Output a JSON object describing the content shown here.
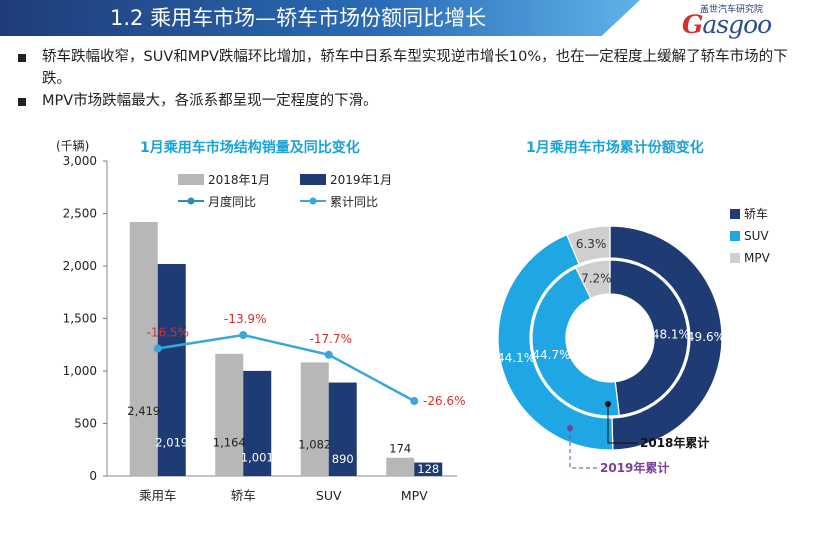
{
  "header": {
    "title": "1.2 乘用车市场—轿车市场份额同比增长",
    "logo_top": "盖世汽车研究院",
    "logo_main": "asgoo",
    "logo_initial": "G"
  },
  "bullets": [
    "轿车跌幅收窄，SUV和MPV跌幅环比增加，轿车中日系车型实现逆市增长10%，也在一定程度上缓解了轿车市场的下跌。",
    "MPV市场跌幅最大，各派系都呈现一定程度的下滑。"
  ],
  "colors": {
    "bar_2018": "#b7b7b7",
    "bar_2019": "#1f3b73",
    "line_monthly": "#2a8fb5",
    "line_cumulative": "#3aa6dc",
    "pct_label": "#d3302f",
    "donut_sedan": "#1f3b73",
    "donut_suv": "#1ea7e4",
    "donut_mpv": "#cfcfcf",
    "purple": "#7a3f96"
  },
  "chart_data": [
    {
      "type": "bar",
      "title": "1月乘用车市场结构销量及同比变化",
      "ylabel": "(千辆)",
      "ylim": [
        0,
        3000
      ],
      "yticks": [
        "0",
        "500",
        "1,000",
        "1,500",
        "2,000",
        "2,500",
        "3,000"
      ],
      "categories": [
        "乘用车",
        "轿车",
        "SUV",
        "MPV"
      ],
      "series": [
        {
          "name": "2018年1月",
          "values": [
            2419,
            1164,
            1082,
            174
          ],
          "labels": [
            "2,419",
            "1,164",
            "1,082",
            "174"
          ]
        },
        {
          "name": "2019年1月",
          "values": [
            2019,
            1001,
            890,
            128
          ],
          "labels": [
            "2,019",
            "1,001",
            "890",
            "128"
          ]
        }
      ],
      "lines": [
        {
          "name": "月度同比",
          "values": [
            -16.5,
            -13.9,
            -17.7,
            -26.6
          ],
          "labels": [
            "-16.5%",
            "-13.9%",
            "-17.7%",
            "-26.6%"
          ]
        },
        {
          "name": "累计同比",
          "values": [
            -16.5,
            -13.9,
            -17.7,
            -26.6
          ]
        }
      ]
    },
    {
      "type": "pie",
      "title": "1月乘用车市场累计份额变化",
      "legend": [
        "轿车",
        "SUV",
        "MPV"
      ],
      "rings": [
        {
          "name": "2018年累计",
          "values": [
            48.1,
            44.7,
            7.2
          ],
          "labels": [
            "48.1%",
            "44.7%",
            "7.2%"
          ]
        },
        {
          "name": "2019年累计",
          "values": [
            49.6,
            44.1,
            6.3
          ],
          "labels": [
            "49.6%",
            "44.1%",
            "6.3%"
          ]
        }
      ]
    }
  ]
}
